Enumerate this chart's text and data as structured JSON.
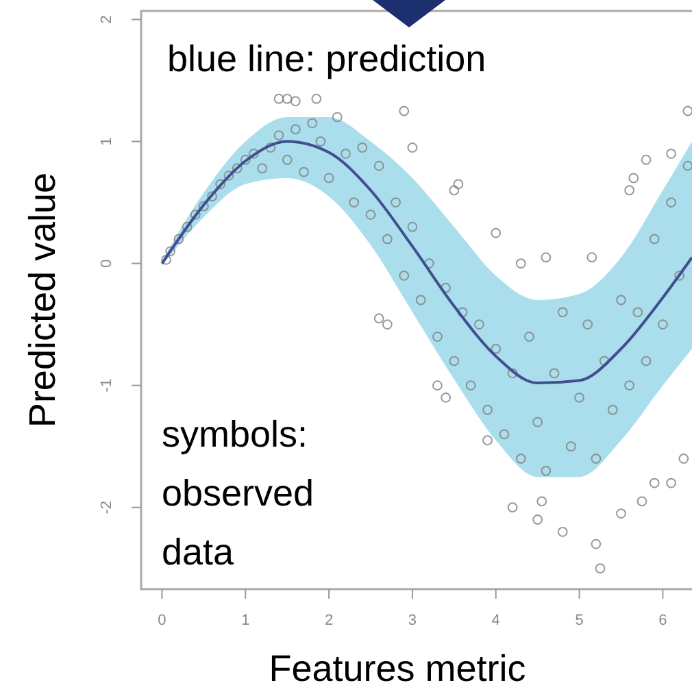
{
  "chart_data": {
    "type": "scatter",
    "xlabel": "Features metric",
    "ylabel": "Predicted value",
    "xlim": [
      -0.25,
      6.35
    ],
    "ylim": [
      -2.67,
      2.07
    ],
    "xticks": [
      0,
      1,
      2,
      3,
      4,
      5,
      6
    ],
    "yticks": [
      -2,
      -1,
      0,
      1,
      2
    ],
    "grid": false,
    "annotations": [
      "blue line: prediction",
      "symbols: observed data"
    ],
    "series": [
      {
        "type": "line",
        "color": "#3f4f8f",
        "x": [
          0,
          0.5,
          1,
          1.5,
          2,
          2.5,
          3,
          3.5,
          4,
          4.5,
          5,
          5.5,
          6,
          6.35
        ],
        "values": [
          0,
          0.48,
          0.84,
          1.0,
          0.91,
          0.6,
          0.14,
          -0.35,
          -0.76,
          -0.98,
          -0.96,
          -0.7,
          -0.28,
          0.05
        ],
        "lower": [
          -0.02,
          0.38,
          0.65,
          0.7,
          0.55,
          0.15,
          -0.4,
          -0.95,
          -1.45,
          -1.75,
          -1.75,
          -1.45,
          -1.0,
          -0.7
        ],
        "upper": [
          0.02,
          0.58,
          1.0,
          1.2,
          1.2,
          1.0,
          0.7,
          0.3,
          -0.1,
          -0.3,
          -0.25,
          0.05,
          0.6,
          1.0
        ],
        "marker": "none"
      },
      {
        "color": "#7f7f7f",
        "marker": "circle",
        "x": [
          0.05,
          0.1,
          0.2,
          0.3,
          0.4,
          0.5,
          0.6,
          0.7,
          0.8,
          0.9,
          1.0,
          1.1,
          1.2,
          1.3,
          1.4,
          1.5,
          1.6,
          1.7,
          1.8,
          1.9,
          2.0,
          2.1,
          2.2,
          2.3,
          2.4,
          2.5,
          2.6,
          2.7,
          2.8,
          2.9,
          3.0,
          3.1,
          3.2,
          3.3,
          3.4,
          3.5,
          3.6,
          3.7,
          3.8,
          3.9,
          4.0,
          4.1,
          4.2,
          4.3,
          4.4,
          4.5,
          4.6,
          4.7,
          4.8,
          4.9,
          5.0,
          5.1,
          5.2,
          5.3,
          5.4,
          5.5,
          5.6,
          5.7,
          5.8,
          5.9,
          6.0,
          6.1,
          6.2,
          6.3,
          1.4,
          1.5,
          1.6,
          1.85,
          2.9,
          3.0,
          3.5,
          3.55,
          4.0,
          4.3,
          4.6,
          5.15,
          2.6,
          2.7,
          3.9,
          4.2,
          4.5,
          4.55,
          4.8,
          5.2,
          5.25,
          5.5,
          5.75,
          5.9,
          6.1,
          6.25,
          6.1,
          6.3,
          5.8,
          5.6,
          5.65,
          3.3,
          3.4
        ],
        "values": [
          0.03,
          0.1,
          0.2,
          0.3,
          0.4,
          0.47,
          0.55,
          0.65,
          0.72,
          0.78,
          0.85,
          0.9,
          0.78,
          0.95,
          1.05,
          0.85,
          1.1,
          0.75,
          1.15,
          1.0,
          0.7,
          1.2,
          0.9,
          0.5,
          0.95,
          0.4,
          0.8,
          0.2,
          0.5,
          -0.1,
          0.3,
          -0.3,
          0.0,
          -0.6,
          -0.2,
          -0.8,
          -0.4,
          -1.0,
          -0.5,
          -1.2,
          -0.7,
          -1.4,
          -0.9,
          -1.6,
          -0.6,
          -1.3,
          -1.7,
          -0.9,
          -0.4,
          -1.5,
          -1.1,
          -0.5,
          -1.6,
          -0.8,
          -1.2,
          -0.3,
          -1.0,
          -0.4,
          -0.8,
          0.2,
          -0.5,
          0.5,
          -0.1,
          0.8,
          1.35,
          1.35,
          1.33,
          1.35,
          1.25,
          0.95,
          0.6,
          0.65,
          0.25,
          0.0,
          0.05,
          0.05,
          -0.45,
          -0.5,
          -1.45,
          -2.0,
          -2.1,
          -1.95,
          -2.2,
          -2.3,
          -2.5,
          -2.05,
          -1.95,
          -1.8,
          -1.8,
          -1.6,
          0.9,
          1.25,
          0.85,
          0.6,
          0.7,
          -1.0,
          -1.1
        ]
      }
    ]
  }
}
